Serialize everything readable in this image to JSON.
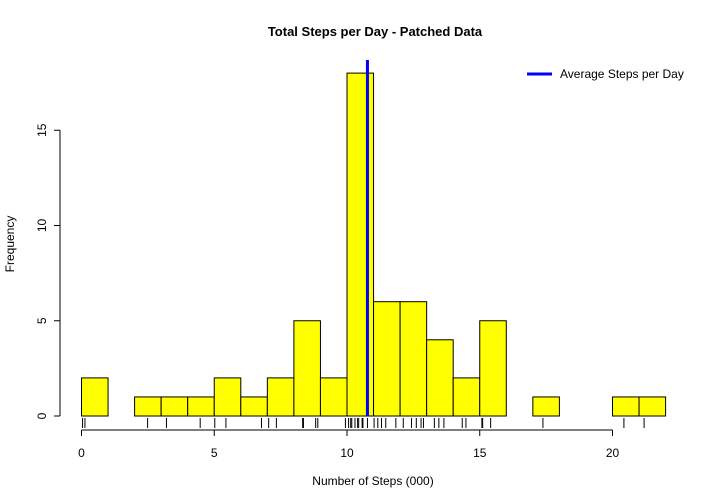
{
  "chart_data": {
    "type": "bar",
    "title": "Total Steps per Day - Patched Data",
    "xlabel": "Number of Steps (000)",
    "ylabel": "Frequency",
    "bin_width": 1,
    "bins": [
      {
        "start": 0,
        "end": 1,
        "count": 2
      },
      {
        "start": 1,
        "end": 2,
        "count": 0
      },
      {
        "start": 2,
        "end": 3,
        "count": 1
      },
      {
        "start": 3,
        "end": 4,
        "count": 1
      },
      {
        "start": 4,
        "end": 5,
        "count": 1
      },
      {
        "start": 5,
        "end": 6,
        "count": 2
      },
      {
        "start": 6,
        "end": 7,
        "count": 1
      },
      {
        "start": 7,
        "end": 8,
        "count": 2
      },
      {
        "start": 8,
        "end": 9,
        "count": 5
      },
      {
        "start": 9,
        "end": 10,
        "count": 2
      },
      {
        "start": 10,
        "end": 11,
        "count": 18
      },
      {
        "start": 11,
        "end": 12,
        "count": 6
      },
      {
        "start": 12,
        "end": 13,
        "count": 6
      },
      {
        "start": 13,
        "end": 14,
        "count": 4
      },
      {
        "start": 14,
        "end": 15,
        "count": 2
      },
      {
        "start": 15,
        "end": 16,
        "count": 5
      },
      {
        "start": 16,
        "end": 17,
        "count": 0
      },
      {
        "start": 17,
        "end": 18,
        "count": 1
      },
      {
        "start": 18,
        "end": 19,
        "count": 0
      },
      {
        "start": 19,
        "end": 20,
        "count": 0
      },
      {
        "start": 20,
        "end": 21,
        "count": 1
      },
      {
        "start": 21,
        "end": 22,
        "count": 1
      }
    ],
    "xlim": [
      0,
      22
    ],
    "ylim": [
      0,
      18
    ],
    "x_ticks": [
      0,
      5,
      10,
      15,
      20
    ],
    "y_ticks": [
      0,
      5,
      10,
      15
    ],
    "average_line": {
      "x": 10.77,
      "color": "#0000ff",
      "legend": "Average Steps per Day"
    },
    "rug": [
      0.04,
      0.13,
      2.49,
      3.2,
      4.47,
      5.02,
      5.44,
      6.78,
      7.05,
      7.34,
      8.33,
      8.36,
      8.82,
      8.9,
      9.94,
      10.06,
      10.14,
      10.18,
      10.3,
      10.4,
      10.44,
      10.57,
      10.6,
      10.77,
      11.02,
      11.16,
      11.3,
      11.46,
      11.84,
      12.12,
      12.43,
      12.61,
      12.79,
      12.88,
      13.29,
      13.46,
      13.65,
      14.34,
      14.48,
      15.08,
      15.11,
      15.41,
      17.38,
      20.43,
      21.19
    ],
    "bar_color": "#ffff00",
    "legend_position": "top-right"
  }
}
